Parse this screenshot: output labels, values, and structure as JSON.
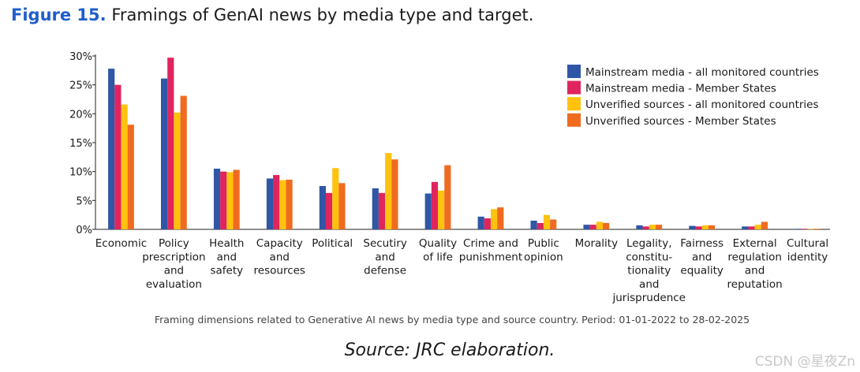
{
  "figure": {
    "number": "Figure 15.",
    "title": "Framings of GenAI news by media type and target.",
    "caption": "Framing dimensions related to Generative AI news by media type and source country. Period: 01-01-2022 to 28-02-2025",
    "source": "Source: JRC elaboration.",
    "watermark": "CSDN @星夜Zn"
  },
  "chart_data": {
    "type": "bar",
    "categories": [
      [
        "Economic"
      ],
      [
        "Policy",
        "prescription",
        "and",
        "evaluation"
      ],
      [
        "Health",
        "and",
        "safety"
      ],
      [
        "Capacity",
        "and",
        "resources"
      ],
      [
        "Political"
      ],
      [
        "Secutiry",
        "and",
        "defense"
      ],
      [
        "Quality",
        "of life"
      ],
      [
        "Crime and",
        "punishment"
      ],
      [
        "Public",
        "opinion"
      ],
      [
        "Morality"
      ],
      [
        "Legality,",
        "constitu-",
        "tionality",
        "and",
        "jurisprudence"
      ],
      [
        "Fairness",
        "and",
        "equality"
      ],
      [
        "External",
        "regulation",
        "and",
        "reputation"
      ],
      [
        "Cultural",
        "identity"
      ]
    ],
    "series": [
      {
        "name": "Mainstream media - all monitored countries",
        "color": "#2f57a6",
        "values": [
          27.8,
          26.1,
          10.5,
          8.8,
          7.5,
          7.1,
          6.2,
          2.2,
          1.5,
          0.8,
          0.7,
          0.6,
          0.5,
          0.1
        ]
      },
      {
        "name": "Mainstream media - Member States",
        "color": "#e0245e",
        "values": [
          25.0,
          29.7,
          10.0,
          9.4,
          6.3,
          6.3,
          8.2,
          1.9,
          1.1,
          0.8,
          0.5,
          0.5,
          0.5,
          0.1
        ]
      },
      {
        "name": "Unverified sources - all monitored countries",
        "color": "#ffc20e",
        "values": [
          21.6,
          20.2,
          9.9,
          8.5,
          10.6,
          13.2,
          6.7,
          3.5,
          2.5,
          1.3,
          0.8,
          0.7,
          0.8,
          0.1
        ]
      },
      {
        "name": "Unverified sources - Member States",
        "color": "#ef6b1f",
        "values": [
          18.1,
          23.1,
          10.3,
          8.6,
          8.0,
          12.1,
          11.1,
          3.8,
          1.7,
          1.1,
          0.8,
          0.7,
          1.3,
          0.1
        ]
      }
    ],
    "ylim": [
      0,
      30
    ],
    "yticks": [
      "0%",
      "5%",
      "10%",
      "15%",
      "20%",
      "25%",
      "30%"
    ],
    "ytick_values": [
      0,
      5,
      10,
      15,
      20,
      25,
      30
    ],
    "legend_position": "top-right",
    "grid": false,
    "xlabel": "",
    "ylabel": ""
  }
}
